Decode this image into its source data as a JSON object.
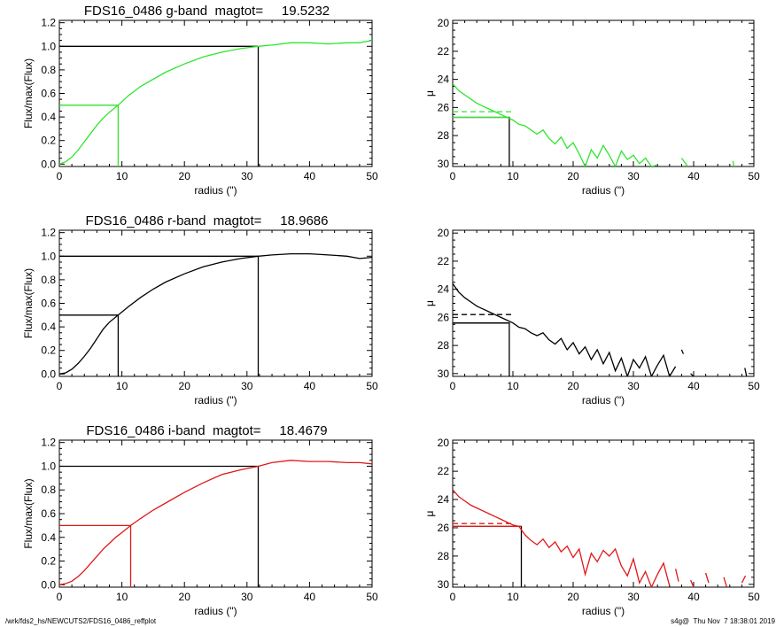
{
  "footer": {
    "left": "/wrk/fds2_hs/NEWCUTS2/FDS16_0486_reffplot",
    "right": "s4g@  Thu Nov  7 18:38:01 2019"
  },
  "chart_data": [
    {
      "id": "g-growth",
      "type": "line",
      "title": "FDS16_0486 g-band  magtot=     19.5232",
      "xlabel": "radius (\")",
      "ylabel": "Flux/max(Flux)",
      "xlim": [
        0,
        50
      ],
      "ylim": [
        -0.02,
        1.22
      ],
      "yreverse": false,
      "xticks": [
        0,
        10,
        20,
        30,
        40,
        50
      ],
      "yticks": [
        0.0,
        0.2,
        0.4,
        0.6,
        0.8,
        1.0,
        1.2
      ],
      "ytick_labels": [
        "0.0",
        "0.2",
        "0.4",
        "0.6",
        "0.8",
        "1.0",
        "1.2"
      ],
      "grid": false,
      "color": "#2ee62e",
      "series": [
        {
          "x": [
            0,
            1,
            2,
            3,
            4,
            5,
            6,
            7,
            8,
            9.4,
            11,
            13,
            15,
            17,
            20,
            23,
            26,
            29,
            31.8,
            34,
            37,
            40,
            43,
            46,
            48,
            50
          ],
          "y": [
            0,
            0.02,
            0.06,
            0.12,
            0.19,
            0.26,
            0.33,
            0.39,
            0.44,
            0.5,
            0.58,
            0.66,
            0.72,
            0.78,
            0.85,
            0.91,
            0.95,
            0.98,
            1.0,
            1.01,
            1.03,
            1.03,
            1.02,
            1.03,
            1.03,
            1.05
          ]
        }
      ],
      "marker_lines": [
        {
          "x": [
            0,
            31.8,
            31.8
          ],
          "y": [
            1.0,
            1.0,
            -0.02
          ],
          "color": "#000000"
        },
        {
          "x": [
            0,
            9.4,
            9.4
          ],
          "y": [
            0.5,
            0.5,
            -0.02
          ],
          "color": "#2ee62e"
        }
      ]
    },
    {
      "id": "g-profile",
      "type": "line",
      "title": "",
      "xlabel": "radius (\")",
      "ylabel": "μ",
      "xlim": [
        0,
        50
      ],
      "ylim": [
        30.2,
        19.8
      ],
      "yreverse": true,
      "xticks": [
        0,
        10,
        20,
        30,
        40,
        50
      ],
      "yticks": [
        20,
        22,
        24,
        26,
        28,
        30
      ],
      "ytick_labels": [
        "20",
        "22",
        "24",
        "26",
        "28",
        "30"
      ],
      "grid": false,
      "color": "#2ee62e",
      "series": [
        {
          "x": [
            0,
            1,
            2,
            3,
            4,
            5,
            6,
            7,
            8,
            9,
            10,
            11,
            12,
            13,
            14,
            15,
            16,
            17,
            18,
            19,
            20,
            21,
            22,
            23,
            24,
            25,
            26,
            27,
            28,
            29,
            30,
            31,
            32,
            33,
            34
          ],
          "y": [
            24.3,
            24.8,
            25.1,
            25.4,
            25.7,
            25.9,
            26.1,
            26.3,
            26.5,
            26.7,
            26.9,
            27.2,
            27.3,
            27.6,
            27.9,
            27.6,
            28.2,
            28.6,
            28.1,
            28.9,
            28.5,
            29.3,
            30.2,
            29.0,
            29.6,
            28.7,
            29.4,
            30.2,
            29.1,
            29.7,
            29.4,
            30.0,
            29.6,
            30.2,
            30.1
          ]
        },
        {
          "x": [
            38,
            39
          ],
          "y": [
            29.6,
            30.2
          ]
        },
        {
          "x": [
            46.5,
            46.7
          ],
          "y": [
            29.8,
            30.2
          ]
        }
      ],
      "marker_lines": [
        {
          "x": [
            0,
            9.4,
            9.4
          ],
          "y": [
            26.7,
            26.7,
            30.2
          ],
          "color": "#000000",
          "dash": false
        },
        {
          "x": [
            0,
            9.4
          ],
          "y": [
            26.7,
            26.7
          ],
          "color": "#2ee62e",
          "dash": false
        },
        {
          "x": [
            0,
            10
          ],
          "y": [
            26.3,
            26.3
          ],
          "color": "#2ee62e",
          "dash": true
        }
      ]
    },
    {
      "id": "r-growth",
      "type": "line",
      "title": "FDS16_0486 r-band  magtot=     18.9686",
      "xlabel": "radius (\")",
      "ylabel": "Flux/max(Flux)",
      "xlim": [
        0,
        50
      ],
      "ylim": [
        -0.02,
        1.22
      ],
      "yreverse": false,
      "xticks": [
        0,
        10,
        20,
        30,
        40,
        50
      ],
      "yticks": [
        0.0,
        0.2,
        0.4,
        0.6,
        0.8,
        1.0,
        1.2
      ],
      "ytick_labels": [
        "0.0",
        "0.2",
        "0.4",
        "0.6",
        "0.8",
        "1.0",
        "1.2"
      ],
      "grid": false,
      "color": "#000000",
      "series": [
        {
          "x": [
            0,
            1,
            2,
            3,
            4,
            5,
            6,
            7,
            8,
            9.4,
            11,
            13,
            15,
            17,
            20,
            23,
            26,
            29,
            31.8,
            34,
            37,
            40,
            43,
            46,
            48,
            50
          ],
          "y": [
            0,
            0.01,
            0.04,
            0.09,
            0.15,
            0.22,
            0.3,
            0.38,
            0.44,
            0.5,
            0.57,
            0.65,
            0.72,
            0.78,
            0.85,
            0.91,
            0.95,
            0.98,
            1.0,
            1.01,
            1.02,
            1.02,
            1.01,
            1.0,
            0.98,
            0.99
          ]
        }
      ],
      "marker_lines": [
        {
          "x": [
            0,
            31.8,
            31.8
          ],
          "y": [
            1.0,
            1.0,
            -0.02
          ],
          "color": "#000000"
        },
        {
          "x": [
            0,
            9.4,
            9.4
          ],
          "y": [
            0.5,
            0.5,
            -0.02
          ],
          "color": "#000000"
        }
      ]
    },
    {
      "id": "r-profile",
      "type": "line",
      "title": "",
      "xlabel": "radius (\")",
      "ylabel": "μ",
      "xlim": [
        0,
        50
      ],
      "ylim": [
        30.2,
        19.8
      ],
      "yreverse": true,
      "xticks": [
        0,
        10,
        20,
        30,
        40,
        50
      ],
      "yticks": [
        20,
        22,
        24,
        26,
        28,
        30
      ],
      "ytick_labels": [
        "20",
        "22",
        "24",
        "26",
        "28",
        "30"
      ],
      "grid": false,
      "color": "#000000",
      "series": [
        {
          "x": [
            0,
            1,
            2,
            3,
            4,
            5,
            6,
            7,
            8,
            9,
            10,
            11,
            12,
            13,
            14,
            15,
            16,
            17,
            18,
            19,
            20,
            21,
            22,
            23,
            24,
            25,
            26,
            27,
            28,
            29,
            30,
            31,
            32,
            33,
            34,
            35,
            36,
            37
          ],
          "y": [
            23.6,
            24.2,
            24.6,
            24.9,
            25.2,
            25.4,
            25.6,
            25.8,
            26.0,
            26.2,
            26.4,
            26.7,
            26.8,
            27.1,
            27.3,
            27.1,
            27.6,
            27.9,
            27.5,
            28.3,
            27.8,
            28.6,
            28.1,
            29.0,
            28.3,
            29.3,
            28.5,
            29.8,
            28.9,
            30.2,
            29.0,
            29.6,
            28.8,
            30.2,
            29.4,
            28.7,
            30.2,
            29.5
          ]
        },
        {
          "x": [
            38,
            38.3
          ],
          "y": [
            28.3,
            28.6
          ]
        },
        {
          "x": [
            39.5,
            40
          ],
          "y": [
            30.0,
            30.2
          ]
        },
        {
          "x": [
            48.5,
            48.8
          ],
          "y": [
            29.6,
            30.2
          ]
        }
      ],
      "marker_lines": [
        {
          "x": [
            0,
            9.4,
            9.4
          ],
          "y": [
            26.4,
            26.4,
            30.2
          ],
          "color": "#000000",
          "dash": false
        },
        {
          "x": [
            0,
            9.4
          ],
          "y": [
            26.4,
            26.4
          ],
          "color": "#000000",
          "dash": false
        },
        {
          "x": [
            0,
            10
          ],
          "y": [
            25.8,
            25.8
          ],
          "color": "#000000",
          "dash": true
        }
      ]
    },
    {
      "id": "i-growth",
      "type": "line",
      "title": "FDS16_0486 i-band  magtot=     18.4679",
      "xlabel": "radius (\")",
      "ylabel": "Flux/max(Flux)",
      "xlim": [
        0,
        50
      ],
      "ylim": [
        -0.02,
        1.22
      ],
      "yreverse": false,
      "xticks": [
        0,
        10,
        20,
        30,
        40,
        50
      ],
      "yticks": [
        0.0,
        0.2,
        0.4,
        0.6,
        0.8,
        1.0,
        1.2
      ],
      "ytick_labels": [
        "0.0",
        "0.2",
        "0.4",
        "0.6",
        "0.8",
        "1.0",
        "1.2"
      ],
      "grid": false,
      "color": "#e01818",
      "series": [
        {
          "x": [
            0,
            1,
            2,
            3,
            4,
            5,
            6,
            7,
            8,
            9,
            10,
            11.4,
            13,
            15,
            17,
            20,
            23,
            26,
            29,
            31.8,
            34,
            37,
            40,
            43,
            46,
            48,
            50
          ],
          "y": [
            0,
            0.01,
            0.03,
            0.07,
            0.12,
            0.18,
            0.24,
            0.3,
            0.35,
            0.4,
            0.44,
            0.5,
            0.56,
            0.63,
            0.69,
            0.78,
            0.86,
            0.93,
            0.97,
            1.0,
            1.03,
            1.05,
            1.04,
            1.04,
            1.03,
            1.03,
            1.02
          ]
        }
      ],
      "marker_lines": [
        {
          "x": [
            0,
            31.8,
            31.8
          ],
          "y": [
            1.0,
            1.0,
            -0.02
          ],
          "color": "#000000"
        },
        {
          "x": [
            0,
            11.4,
            11.4
          ],
          "y": [
            0.5,
            0.5,
            -0.02
          ],
          "color": "#e01818"
        }
      ]
    },
    {
      "id": "i-profile",
      "type": "line",
      "title": "",
      "xlabel": "radius (\")",
      "ylabel": "μ",
      "xlim": [
        0,
        50
      ],
      "ylim": [
        30.2,
        19.8
      ],
      "yreverse": true,
      "xticks": [
        0,
        10,
        20,
        30,
        40,
        50
      ],
      "yticks": [
        20,
        22,
        24,
        26,
        28,
        30
      ],
      "ytick_labels": [
        "20",
        "22",
        "24",
        "26",
        "28",
        "30"
      ],
      "grid": false,
      "color": "#e01818",
      "series": [
        {
          "x": [
            0,
            1,
            2,
            3,
            4,
            5,
            6,
            7,
            8,
            9,
            10,
            11,
            12,
            13,
            14,
            15,
            16,
            17,
            18,
            19,
            20,
            21,
            22,
            23,
            24,
            25,
            26,
            27,
            28,
            29,
            30,
            31,
            32,
            33,
            34,
            35,
            36
          ],
          "y": [
            23.3,
            23.8,
            24.1,
            24.4,
            24.6,
            24.8,
            25.0,
            25.2,
            25.4,
            25.6,
            25.8,
            25.9,
            26.5,
            26.9,
            27.2,
            26.8,
            27.4,
            27.0,
            27.7,
            27.3,
            28.1,
            27.5,
            29.3,
            27.8,
            28.4,
            27.6,
            28.0,
            27.5,
            28.7,
            29.4,
            28.2,
            29.9,
            29.1,
            30.2,
            29.3,
            28.5,
            30.1
          ]
        },
        {
          "x": [
            37,
            37.5
          ],
          "y": [
            28.9,
            29.8
          ]
        },
        {
          "x": [
            39.5,
            40
          ],
          "y": [
            29.7,
            30.2
          ]
        },
        {
          "x": [
            42,
            42.5
          ],
          "y": [
            29.2,
            29.9
          ]
        },
        {
          "x": [
            45,
            45.5
          ],
          "y": [
            29.5,
            30.2
          ]
        },
        {
          "x": [
            48,
            48.6
          ],
          "y": [
            29.9,
            29.4
          ]
        }
      ],
      "marker_lines": [
        {
          "x": [
            0,
            11.4,
            11.4
          ],
          "y": [
            25.9,
            25.9,
            30.2
          ],
          "color": "#000000",
          "dash": false
        },
        {
          "x": [
            0,
            11.4
          ],
          "y": [
            25.9,
            25.9
          ],
          "color": "#e01818",
          "dash": false
        },
        {
          "x": [
            0,
            10
          ],
          "y": [
            25.7,
            25.7
          ],
          "color": "#e01818",
          "dash": true
        }
      ]
    }
  ]
}
